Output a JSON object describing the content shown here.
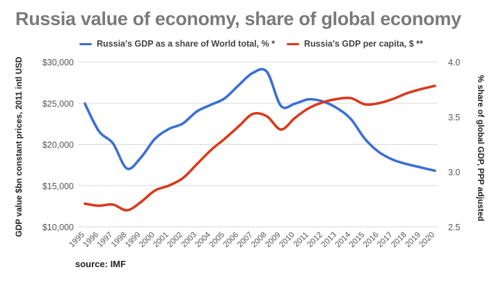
{
  "title": "Russia value of economy, share of global economy",
  "source": "source: IMF",
  "colors": {
    "share": "#3a6fd6",
    "gdp": "#d83a1c",
    "grid": "#d9d9d9",
    "tick": "#555555",
    "title": "#7a7a7a"
  },
  "chart_data": {
    "type": "line",
    "title": "Russia value of economy, share of global economy",
    "x": [
      "1995",
      "1996",
      "1997",
      "1998",
      "1999",
      "2000",
      "2001",
      "2002",
      "2003",
      "2004",
      "2005",
      "2006",
      "2007",
      "2008",
      "2009",
      "2010",
      "2011",
      "2012",
      "2013",
      "2014",
      "2015",
      "2016",
      "2017",
      "2018",
      "2019",
      "2020"
    ],
    "ylabel_left": "GDP value $bn constant prices, 2011 intl USD",
    "ylabel_right": "% share of global GDP, PPP adjusted",
    "y_left": {
      "min": 10000,
      "max": 30000,
      "ticks": [
        10000,
        15000,
        20000,
        25000,
        30000
      ],
      "tick_labels": [
        "$10,000",
        "$15,000",
        "$20,000",
        "$25,000",
        "$30,000"
      ]
    },
    "y_right": {
      "min": 2.5,
      "max": 4.0,
      "ticks": [
        2.5,
        3.0,
        3.5,
        4.0
      ],
      "tick_labels": [
        "2.5",
        "3.0",
        "3.5",
        "4.0"
      ]
    },
    "legend_position": "top",
    "grid": true,
    "series": [
      {
        "name": "Russia's GDP as a share of World total, % *",
        "axis": "right",
        "color": "#3a6fd6",
        "values": [
          3.62,
          3.37,
          3.26,
          3.03,
          3.13,
          3.3,
          3.39,
          3.44,
          3.55,
          3.61,
          3.67,
          3.79,
          3.9,
          3.91,
          3.6,
          3.62,
          3.66,
          3.64,
          3.58,
          3.48,
          3.3,
          3.18,
          3.11,
          3.07,
          3.04,
          3.01
        ]
      },
      {
        "name": "Russia's GDP per capita, $ **",
        "axis": "left",
        "color": "#d83a1c",
        "values": [
          12800,
          12550,
          12700,
          12000,
          13000,
          14400,
          15000,
          15900,
          17600,
          19300,
          20700,
          22200,
          23700,
          23400,
          21800,
          23200,
          24400,
          25100,
          25500,
          25600,
          24850,
          25000,
          25500,
          26200,
          26700,
          27100
        ]
      }
    ]
  }
}
